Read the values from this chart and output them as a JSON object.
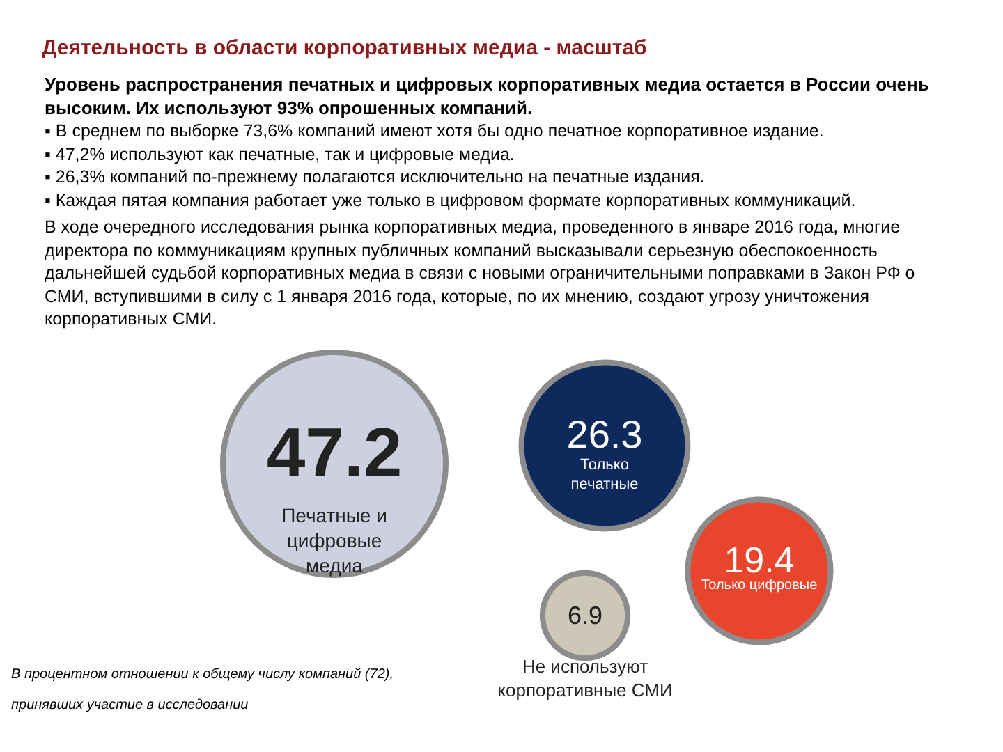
{
  "chart_data": {
    "type": "other",
    "title": "Деятельность в области корпоративных медиа - масштаб",
    "subtitle": "Уровень распространения печатных и цифровых корпоративных медиа остается в России очень высоким. Их используют 93% опрошенных компаний.",
    "annotations": [
      "▪ В среднем по выборке 73,6% компаний имеют хотя бы одно печатное корпоративное издание.",
      "▪ 47,2% используют как печатные, так и цифровые медиа.",
      "▪ 26,3% компаний по-прежнему полагаются исключительно на печатные издания.",
      "▪ Каждая пятая компания работает уже только в цифровом формате корпоративных коммуникаций.",
      "В ходе очередного исследования рынка корпоративных медиа, проведенного в январе 2016 года, многие директора по коммуникациям крупных публичных компаний высказывали серьезную обеспокоенность дальнейшей судьбой корпоративных медиа в связи с новыми ограничительными поправками в Закон РФ о СМИ, вступившими в силу с 1 января 2016 года, которые, по их мнению, создают угрозу уничтожения корпоративных СМИ.",
      "В процентном отношении к общему числу компаний (72), принявших участие в исследовании"
    ],
    "categories": [
      "Печатные и цифровые медиа",
      "Только печатные",
      "Только цифровые",
      "Не используют корпоративные СМИ"
    ],
    "values": [
      47.2,
      26.3,
      19.4,
      6.9
    ],
    "colors": [
      "#cdd0de",
      "#0e2a5c",
      "#e8452c",
      "#ccc7b6"
    ],
    "data_labels": true
  }
}
